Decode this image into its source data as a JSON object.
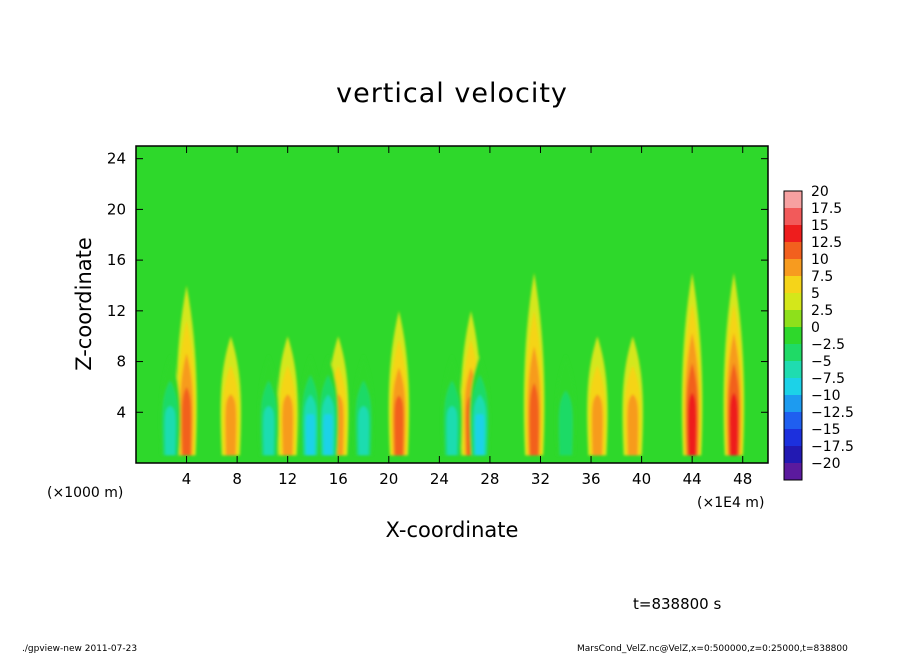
{
  "chart_data": {
    "type": "heatmap",
    "title": "vertical velocity",
    "xlabel": "X-coordinate",
    "ylabel": "Z-coordinate",
    "x_unit_left": "(×1000 m)",
    "x_unit_right": "(×1E4 m)",
    "xlim": [
      0,
      50
    ],
    "ylim": [
      0,
      25
    ],
    "x_ticks": [
      "4",
      "8",
      "12",
      "16",
      "20",
      "24",
      "28",
      "32",
      "36",
      "40",
      "44",
      "48"
    ],
    "x_tick_values": [
      4,
      8,
      12,
      16,
      20,
      24,
      28,
      32,
      36,
      40,
      44,
      48
    ],
    "y_ticks": [
      "4",
      "8",
      "12",
      "16",
      "20",
      "24"
    ],
    "y_tick_values": [
      4,
      8,
      12,
      16,
      20,
      24
    ],
    "colorbar": {
      "labels": [
        "20",
        "17.5",
        "15",
        "12.5",
        "10",
        "7.5",
        "5",
        "2.5",
        "0",
        "−2.5",
        "−5",
        "−7.5",
        "−10",
        "−12.5",
        "−15",
        "−17.5",
        "−20"
      ],
      "levels": [
        20,
        17.5,
        15,
        12.5,
        10,
        7.5,
        5,
        2.5,
        0,
        -2.5,
        -5,
        -7.5,
        -10,
        -12.5,
        -15,
        -17.5,
        -20
      ],
      "colors": [
        "#f7a1a1",
        "#f25a5a",
        "#ee1d1d",
        "#f2601e",
        "#f79b1f",
        "#f5d419",
        "#d4e71a",
        "#8ee01b",
        "#2ed82b",
        "#1fda66",
        "#1fdcb0",
        "#1cd2e8",
        "#1d9bf0",
        "#1f5ff0",
        "#1c30dd",
        "#2219b2",
        "#5b1a9e"
      ]
    },
    "features": {
      "updrafts": [
        {
          "x": 4,
          "peak": 12,
          "z_top": 14
        },
        {
          "x": 7.5,
          "peak": 8,
          "z_top": 10
        },
        {
          "x": 12,
          "peak": 9,
          "z_top": 10
        },
        {
          "x": 16,
          "peak": 9,
          "z_top": 10
        },
        {
          "x": 20.8,
          "peak": 11,
          "z_top": 12
        },
        {
          "x": 26.5,
          "peak": 10,
          "z_top": 12
        },
        {
          "x": 31.5,
          "peak": 12,
          "z_top": 15
        },
        {
          "x": 36.5,
          "peak": 9,
          "z_top": 10
        },
        {
          "x": 39.3,
          "peak": 9,
          "z_top": 10
        },
        {
          "x": 44,
          "peak": 14,
          "z_top": 15
        },
        {
          "x": 47.3,
          "peak": 13,
          "z_top": 15
        }
      ],
      "downdrafts": [
        {
          "x": 2.7,
          "peak": -9
        },
        {
          "x": 10.5,
          "peak": -8
        },
        {
          "x": 13.8,
          "peak": -11
        },
        {
          "x": 15.2,
          "peak": -12
        },
        {
          "x": 18,
          "peak": -8
        },
        {
          "x": 27.2,
          "peak": -12
        },
        {
          "x": 25,
          "peak": -8
        },
        {
          "x": 34,
          "peak": -7
        }
      ]
    }
  },
  "annotations": {
    "time": "t=838800 s",
    "footer_left": "./gpview-new   2011-07-23",
    "footer_right": "MarsCond_VelZ.nc@VelZ,x=0:500000,z=0:25000,t=838800"
  }
}
